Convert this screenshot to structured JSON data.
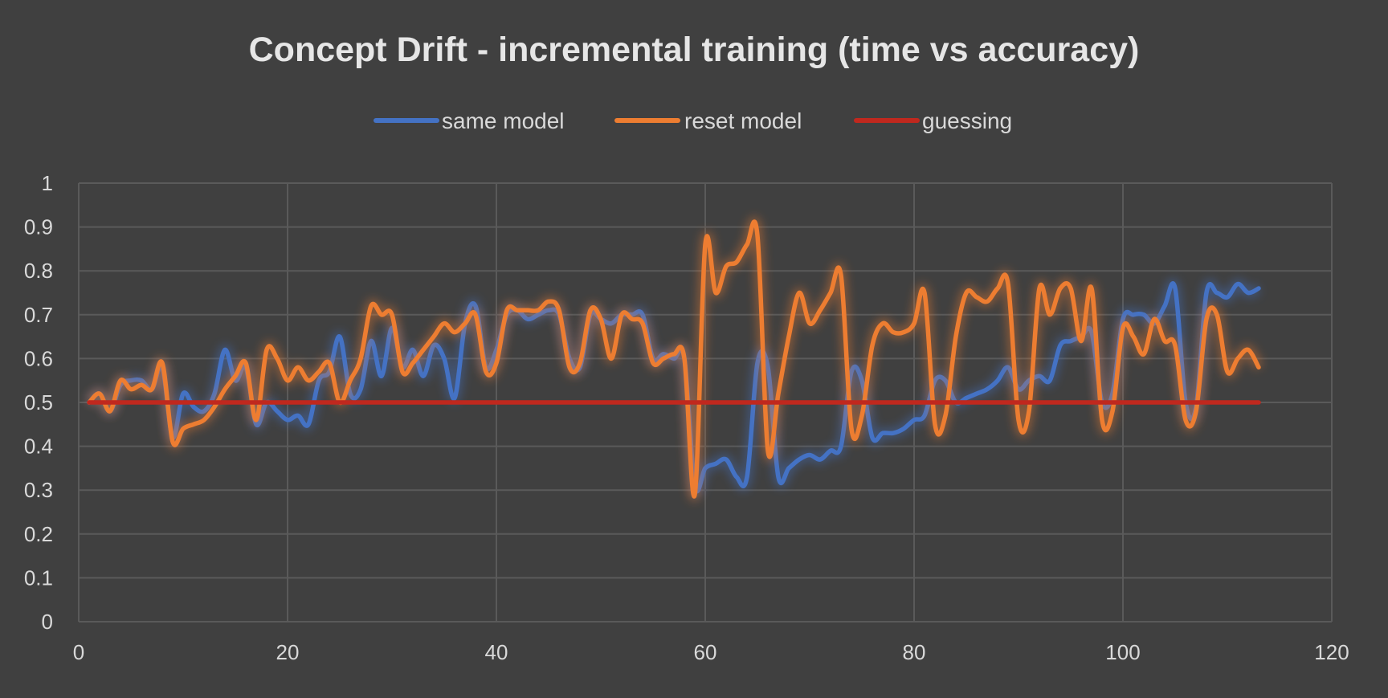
{
  "chart_data": {
    "type": "line",
    "title": "Concept Drift - incremental training (time vs accuracy)",
    "xlabel": "",
    "ylabel": "",
    "xlim": [
      0,
      120
    ],
    "ylim": [
      0,
      1
    ],
    "x_ticks": [
      "0",
      "20",
      "40",
      "60",
      "80",
      "100",
      "120"
    ],
    "y_ticks": [
      "0",
      "0.1",
      "0.2",
      "0.3",
      "0.4",
      "0.5",
      "0.6",
      "0.7",
      "0.8",
      "0.9",
      "1"
    ],
    "grid": true,
    "legend_position": "top-center",
    "colors": {
      "background": "#404040",
      "grid": "#5a5a5a",
      "text": "#d9d9d9",
      "title": "#e6e6e6"
    },
    "x": [
      1,
      2,
      3,
      4,
      5,
      6,
      7,
      8,
      9,
      10,
      11,
      12,
      13,
      14,
      15,
      16,
      17,
      18,
      19,
      20,
      21,
      22,
      23,
      24,
      25,
      26,
      27,
      28,
      29,
      30,
      31,
      32,
      33,
      34,
      35,
      36,
      37,
      38,
      39,
      40,
      41,
      42,
      43,
      44,
      45,
      46,
      47,
      48,
      49,
      50,
      51,
      52,
      53,
      54,
      55,
      56,
      57,
      58,
      59,
      60,
      61,
      62,
      63,
      64,
      65,
      66,
      67,
      68,
      69,
      70,
      71,
      72,
      73,
      74,
      75,
      76,
      77,
      78,
      79,
      80,
      81,
      82,
      83,
      84,
      85,
      86,
      87,
      88,
      89,
      90,
      91,
      92,
      93,
      94,
      95,
      96,
      97,
      98,
      99,
      100,
      101,
      102,
      103,
      104,
      105,
      106,
      107,
      108,
      109,
      110,
      111,
      112,
      113
    ],
    "series": [
      {
        "name": "same model",
        "color": "#4472c4",
        "values": [
          0.5,
          0.52,
          0.48,
          0.54,
          0.55,
          0.55,
          0.53,
          0.58,
          0.42,
          0.52,
          0.49,
          0.48,
          0.52,
          0.62,
          0.55,
          0.58,
          0.45,
          0.5,
          0.48,
          0.46,
          0.47,
          0.45,
          0.55,
          0.57,
          0.65,
          0.52,
          0.53,
          0.64,
          0.56,
          0.67,
          0.58,
          0.62,
          0.56,
          0.63,
          0.6,
          0.51,
          0.68,
          0.72,
          0.58,
          0.62,
          0.7,
          0.71,
          0.69,
          0.7,
          0.71,
          0.7,
          0.6,
          0.58,
          0.7,
          0.69,
          0.68,
          0.7,
          0.7,
          0.7,
          0.6,
          0.61,
          0.6,
          0.6,
          0.31,
          0.35,
          0.36,
          0.37,
          0.33,
          0.33,
          0.59,
          0.58,
          0.33,
          0.35,
          0.37,
          0.38,
          0.37,
          0.39,
          0.4,
          0.57,
          0.55,
          0.42,
          0.43,
          0.43,
          0.44,
          0.46,
          0.47,
          0.55,
          0.55,
          0.5,
          0.51,
          0.52,
          0.53,
          0.55,
          0.58,
          0.53,
          0.55,
          0.56,
          0.55,
          0.63,
          0.64,
          0.65,
          0.66,
          0.5,
          0.52,
          0.69,
          0.7,
          0.7,
          0.68,
          0.72,
          0.76,
          0.5,
          0.49,
          0.75,
          0.75,
          0.74,
          0.77,
          0.75,
          0.76
        ]
      },
      {
        "name": "reset model",
        "color": "#ed7d31",
        "values": [
          0.5,
          0.52,
          0.48,
          0.55,
          0.53,
          0.54,
          0.53,
          0.59,
          0.41,
          0.44,
          0.45,
          0.46,
          0.49,
          0.53,
          0.56,
          0.59,
          0.46,
          0.62,
          0.6,
          0.55,
          0.58,
          0.55,
          0.57,
          0.59,
          0.5,
          0.55,
          0.6,
          0.72,
          0.7,
          0.7,
          0.57,
          0.59,
          0.62,
          0.65,
          0.68,
          0.66,
          0.68,
          0.7,
          0.57,
          0.59,
          0.71,
          0.71,
          0.71,
          0.71,
          0.73,
          0.71,
          0.58,
          0.59,
          0.71,
          0.69,
          0.6,
          0.7,
          0.69,
          0.68,
          0.59,
          0.6,
          0.61,
          0.6,
          0.29,
          0.86,
          0.75,
          0.81,
          0.82,
          0.86,
          0.88,
          0.39,
          0.52,
          0.65,
          0.75,
          0.68,
          0.71,
          0.75,
          0.79,
          0.44,
          0.47,
          0.63,
          0.68,
          0.66,
          0.66,
          0.68,
          0.75,
          0.45,
          0.47,
          0.65,
          0.75,
          0.74,
          0.73,
          0.76,
          0.77,
          0.46,
          0.48,
          0.76,
          0.7,
          0.76,
          0.76,
          0.64,
          0.76,
          0.46,
          0.48,
          0.67,
          0.65,
          0.61,
          0.69,
          0.64,
          0.63,
          0.46,
          0.48,
          0.69,
          0.7,
          0.57,
          0.6,
          0.62,
          0.58
        ]
      },
      {
        "name": "guessing",
        "color": "#c0281e",
        "values": [
          0.5,
          0.5,
          0.5,
          0.5,
          0.5,
          0.5,
          0.5,
          0.5,
          0.5,
          0.5,
          0.5,
          0.5,
          0.5,
          0.5,
          0.5,
          0.5,
          0.5,
          0.5,
          0.5,
          0.5,
          0.5,
          0.5,
          0.5,
          0.5,
          0.5,
          0.5,
          0.5,
          0.5,
          0.5,
          0.5,
          0.5,
          0.5,
          0.5,
          0.5,
          0.5,
          0.5,
          0.5,
          0.5,
          0.5,
          0.5,
          0.5,
          0.5,
          0.5,
          0.5,
          0.5,
          0.5,
          0.5,
          0.5,
          0.5,
          0.5,
          0.5,
          0.5,
          0.5,
          0.5,
          0.5,
          0.5,
          0.5,
          0.5,
          0.5,
          0.5,
          0.5,
          0.5,
          0.5,
          0.5,
          0.5,
          0.5,
          0.5,
          0.5,
          0.5,
          0.5,
          0.5,
          0.5,
          0.5,
          0.5,
          0.5,
          0.5,
          0.5,
          0.5,
          0.5,
          0.5,
          0.5,
          0.5,
          0.5,
          0.5,
          0.5,
          0.5,
          0.5,
          0.5,
          0.5,
          0.5,
          0.5,
          0.5,
          0.5,
          0.5,
          0.5,
          0.5,
          0.5,
          0.5,
          0.5,
          0.5,
          0.5,
          0.5,
          0.5,
          0.5,
          0.5,
          0.5,
          0.5,
          0.5,
          0.5,
          0.5,
          0.5,
          0.5,
          0.5
        ]
      }
    ]
  }
}
